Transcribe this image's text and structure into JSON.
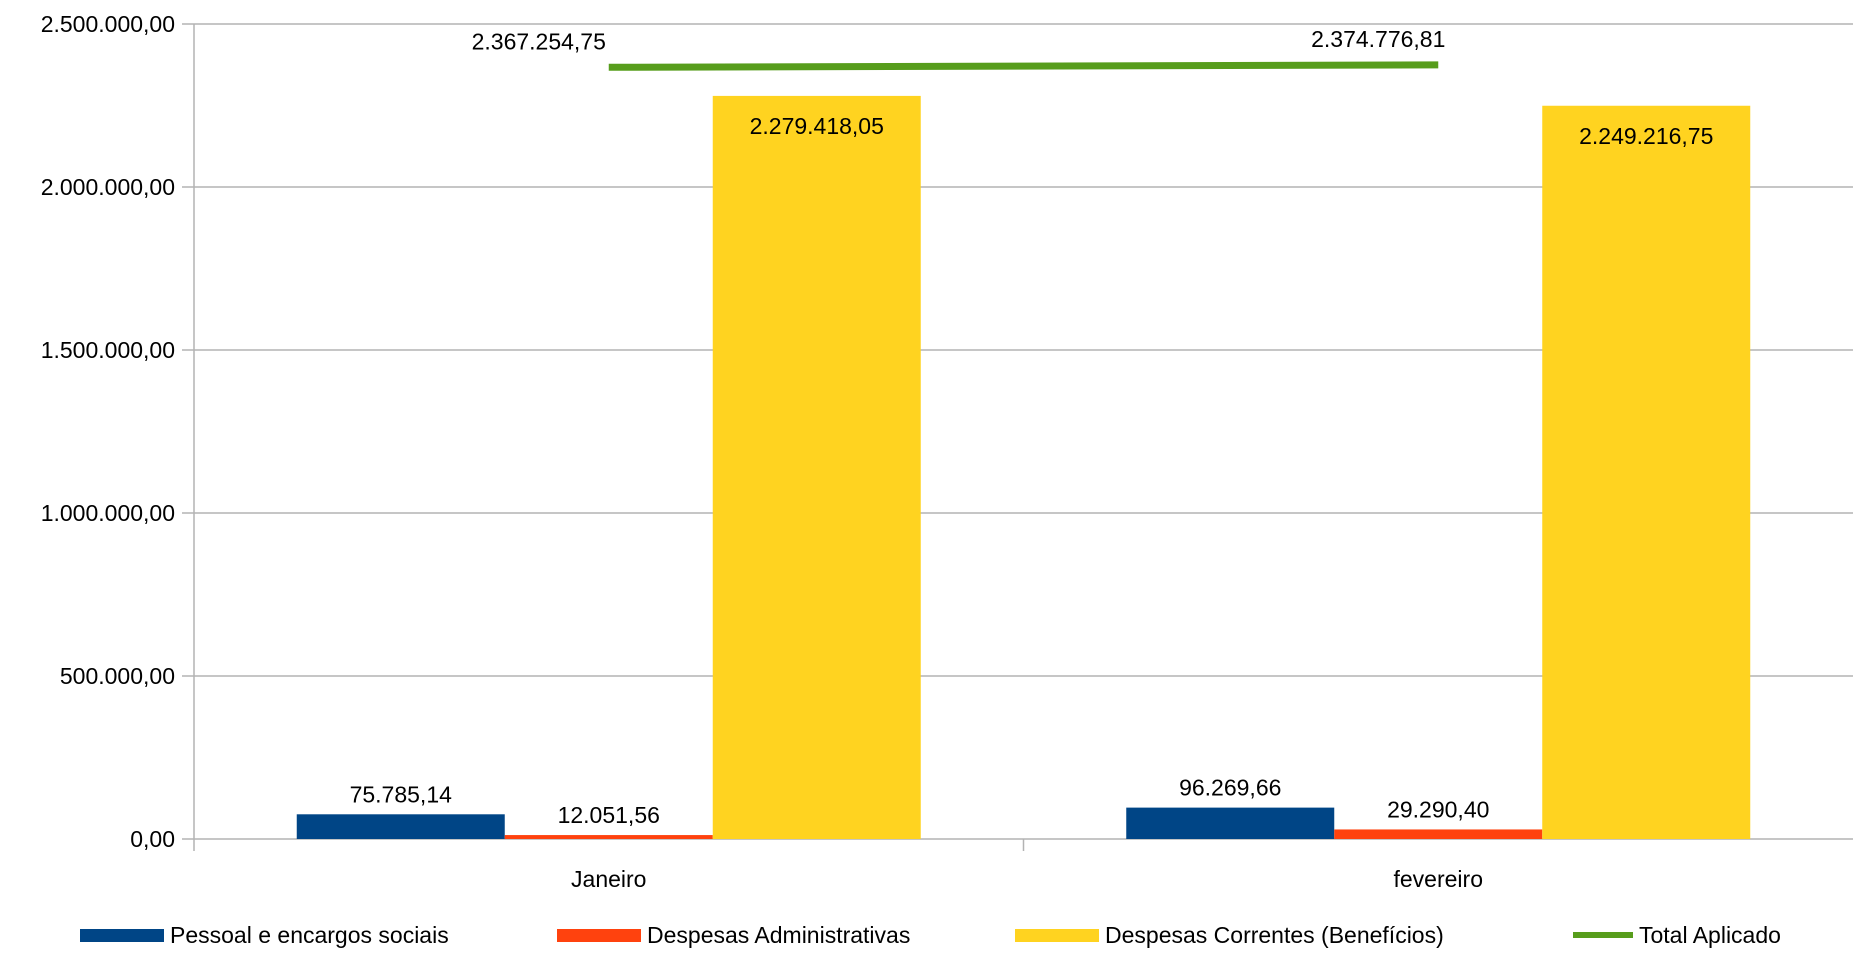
{
  "chart_data": {
    "type": "bar",
    "categories": [
      "Janeiro",
      "fevereiro"
    ],
    "series": [
      {
        "name": "Pessoal e encargos sociais",
        "kind": "bar",
        "color": "#004586",
        "values": [
          75785.14,
          96269.66
        ],
        "labels": [
          "75.785,14",
          "96.269,66"
        ]
      },
      {
        "name": "Despesas Administrativas",
        "kind": "bar",
        "color": "#ff420e",
        "values": [
          12051.56,
          29290.4
        ],
        "labels": [
          "12.051,56",
          "29.290,40"
        ]
      },
      {
        "name": "Despesas Correntes (Benefícios)",
        "kind": "bar",
        "color": "#ffd320",
        "values": [
          2279418.05,
          2249216.75
        ],
        "labels": [
          "2.279.418,05",
          "2.249.216,75"
        ]
      },
      {
        "name": "Total Aplicado",
        "kind": "line",
        "color": "#579d1c",
        "values": [
          2367254.75,
          2374776.81
        ],
        "labels": [
          "2.367.254,75",
          "2.374.776,81"
        ]
      }
    ],
    "ylim": [
      0,
      2500000
    ],
    "yticks": [
      0,
      500000,
      1000000,
      1500000,
      2000000,
      2500000
    ],
    "ytick_labels": [
      "0,00",
      "500.000,00",
      "1.000.000,00",
      "1.500.000,00",
      "2.000.000,00",
      "2.500.000,00"
    ],
    "grid": true,
    "legend_position": "bottom"
  }
}
